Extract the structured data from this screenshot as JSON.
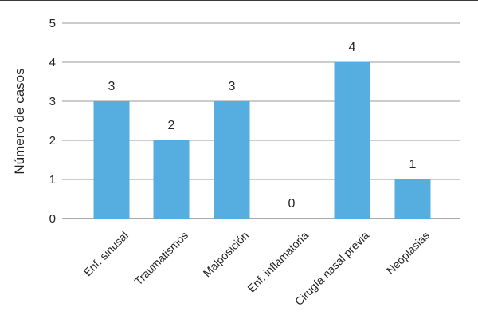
{
  "chart_data": {
    "type": "bar",
    "title": "",
    "xlabel": "",
    "ylabel": "Número de casos",
    "ylim": [
      0,
      5
    ],
    "yticks": [
      0,
      1,
      2,
      3,
      4,
      5
    ],
    "grid": true,
    "categories": [
      "Enf. sinusal",
      "Traumatismos",
      "Malposición",
      "Enf. inflamatoria",
      "Cirugía nasal previa",
      "Neoplasias"
    ],
    "values": [
      3,
      2,
      3,
      0,
      4,
      1
    ],
    "data_labels": [
      "3",
      "2",
      "3",
      "0",
      "4",
      "1"
    ],
    "bar_color": "#56aee0"
  }
}
